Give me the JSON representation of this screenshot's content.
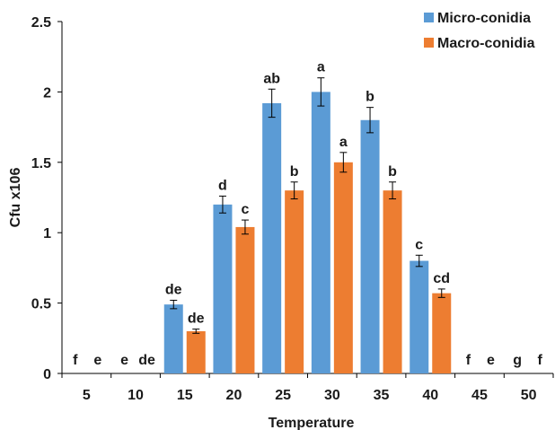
{
  "chart_data": {
    "type": "bar",
    "categories": [
      "5",
      "10",
      "15",
      "20",
      "25",
      "30",
      "35",
      "40",
      "45",
      "50"
    ],
    "xlabel": "Temperature",
    "ylabel": "Cfu  x106",
    "ylim": [
      0,
      2.5
    ],
    "yticks": [
      "0",
      "0.5",
      "1",
      "1.5",
      "2",
      "2.5"
    ],
    "grid": false,
    "legend_position": "top-right",
    "series": [
      {
        "name": "Micro-conidia",
        "color": "#5b9bd5",
        "values": [
          0,
          0,
          0.49,
          1.2,
          1.92,
          2.0,
          1.8,
          0.8,
          0,
          0
        ],
        "errors": [
          0,
          0,
          0.03,
          0.06,
          0.1,
          0.1,
          0.09,
          0.04,
          0,
          0
        ],
        "labels": [
          "f",
          "e",
          "de",
          "d",
          "ab",
          "a",
          "b",
          "c",
          "f",
          "g"
        ]
      },
      {
        "name": "Macro-conidia",
        "color": "#ed7d31",
        "values": [
          0,
          0,
          0.3,
          1.04,
          1.3,
          1.5,
          1.3,
          0.57,
          0,
          0
        ],
        "errors": [
          0,
          0,
          0.015,
          0.05,
          0.06,
          0.07,
          0.06,
          0.03,
          0,
          0
        ],
        "labels": [
          "e",
          "de",
          "de",
          "c",
          "b",
          "a",
          "b",
          "cd",
          "e",
          "f"
        ]
      }
    ]
  }
}
